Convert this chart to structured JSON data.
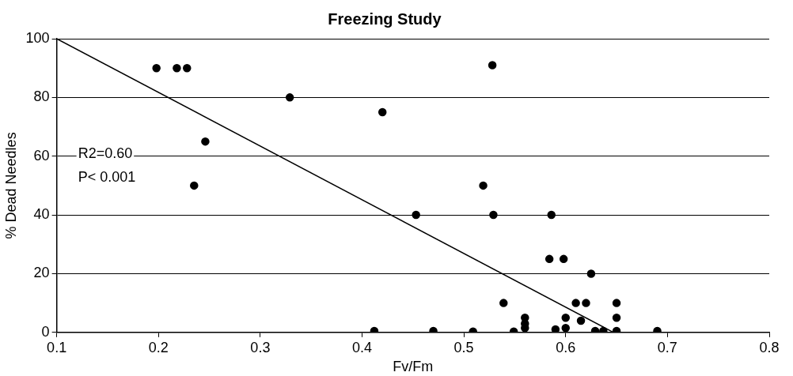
{
  "chart_data": {
    "type": "scatter",
    "title": "Freezing Study",
    "xlabel": "Fv/Fm",
    "ylabel": "% Dead Needles",
    "xlim": [
      0.1,
      0.8
    ],
    "xticks": [
      0.1,
      0.2,
      0.3,
      0.4,
      0.5,
      0.6,
      0.7,
      0.8
    ],
    "ylim": [
      0,
      100
    ],
    "yticks": [
      0,
      20,
      40,
      60,
      80,
      100
    ],
    "grid": "y",
    "legend": false,
    "marker": "circle",
    "annotations": [
      "R2=0.60",
      "P< 0.001"
    ],
    "series": [
      {
        "color": "#000000",
        "x": [
          0.198,
          0.218,
          0.228,
          0.329,
          0.246,
          0.235,
          0.42,
          0.412,
          0.528,
          0.519,
          0.453,
          0.529,
          0.586,
          0.584,
          0.598,
          0.625,
          0.539,
          0.61,
          0.62,
          0.65,
          0.65,
          0.6,
          0.615,
          0.56,
          0.56,
          0.56,
          0.47,
          0.509,
          0.549,
          0.59,
          0.6,
          0.629,
          0.637,
          0.65,
          0.69
        ],
        "values": [
          90,
          90,
          90,
          80,
          65,
          50,
          75,
          0.5,
          91,
          50,
          40,
          40,
          40,
          25,
          25,
          20,
          10,
          10,
          10,
          10,
          5,
          5,
          4,
          5,
          3,
          1.5,
          0.5,
          0.3,
          0.3,
          1,
          1.5,
          0.5,
          0.5,
          0.5,
          0.5
        ]
      },
      {
        "type": "line",
        "color": "#000000",
        "marker": "none",
        "x": [
          0.1,
          0.647
        ],
        "values": [
          100,
          0
        ]
      }
    ]
  }
}
